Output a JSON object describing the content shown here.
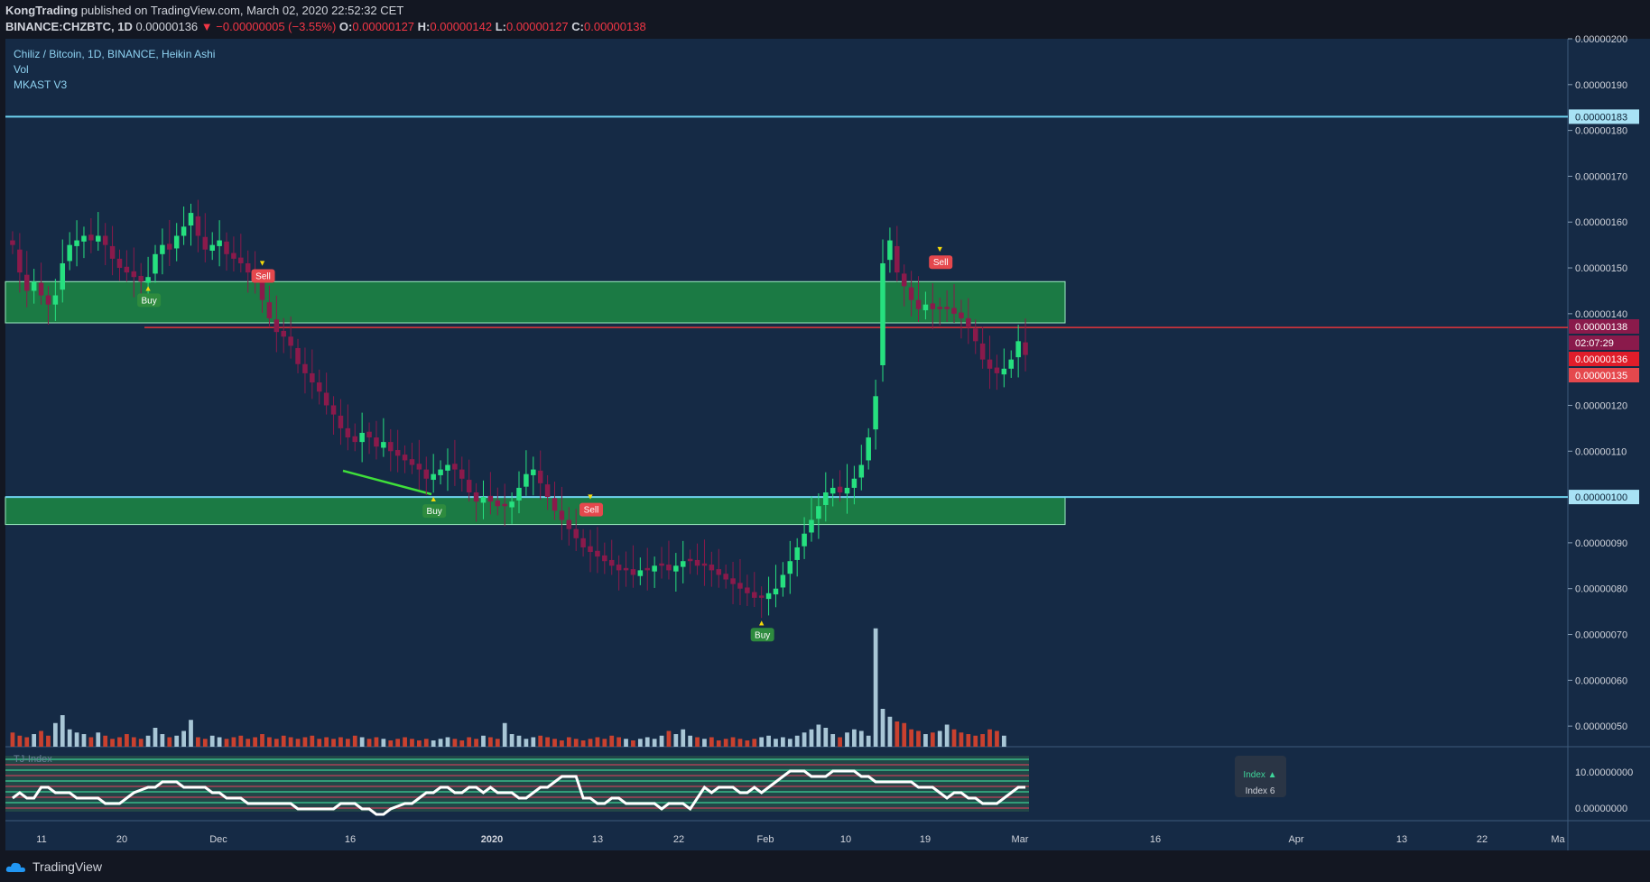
{
  "header": {
    "author": "KongTrading",
    "published": "published on TradingView.com, March 02, 2020 22:52:32 CET",
    "symbol": "BINANCE:CHZBTC, 1D",
    "last": "0.00000136",
    "change": "−0.00000005 (−3.55%)",
    "o_label": "O:",
    "o": "0.00000127",
    "h_label": "H:",
    "h": "0.00000142",
    "l_label": "L:",
    "l": "0.00000127",
    "c_label": "C:",
    "c": "0.00000138"
  },
  "legend": {
    "title": "Chiliz / Bitcoin, 1D, BINANCE, Heikin Ashi",
    "vol": "Vol",
    "indicator": "MKAST V3",
    "sub_indicator": "TJ-Index"
  },
  "footer": {
    "brand": "TradingView"
  },
  "colors": {
    "background": "#152a45",
    "bull": "#26e07f",
    "bear": "#8a1a4b",
    "zone": "#1b7a44",
    "hline": "#6fd3f0",
    "redline": "#e5353a",
    "index_line": "#ffffff"
  },
  "chart_data": [
    {
      "type": "candlestick",
      "title": "Chiliz / Bitcoin, 1D, BINANCE, Heikin Ashi",
      "x_ticks": [
        "11",
        "20",
        "Dec",
        "16",
        "2020",
        "13",
        "22",
        "Feb",
        "10",
        "19",
        "Mar",
        "16",
        "Apr",
        "13",
        "22",
        "Ma"
      ],
      "y_ticks": [
        "0.00000200",
        "0.00000190",
        "0.00000180",
        "0.00000170",
        "0.00000160",
        "0.00000150",
        "0.00000140",
        "0.00000120",
        "0.00000110",
        "0.00000090",
        "0.00000080",
        "0.00000070",
        "0.00000060",
        "0.00000050"
      ],
      "ylim": [
        4.55e-07,
        2e-06
      ],
      "price_labels": {
        "resistance": "0.00000183",
        "current_high": "0.00000138",
        "countdown": "02:07:29",
        "last": "0.00000136",
        "low": "0.00000135",
        "support": "0.00000100"
      },
      "levels": {
        "resistance": 1.83e-06,
        "current": 1.37e-06,
        "support": 1e-06
      },
      "zones": [
        {
          "from": 1.38e-06,
          "to": 1.47e-06
        },
        {
          "from": 9.4e-07,
          "to": 1e-06
        }
      ],
      "signals": [
        {
          "label": "Buy",
          "index": 19,
          "price": 1.46e-06
        },
        {
          "label": "Sell",
          "index": 35,
          "price": 1.45e-06
        },
        {
          "label": "Buy",
          "index": 59,
          "price": 1e-06
        },
        {
          "label": "Sell",
          "index": 81,
          "price": 9.4e-07
        },
        {
          "label": "Buy",
          "index": 105,
          "price": 7.3e-07
        },
        {
          "label": "Sell",
          "index": 130,
          "price": 1.48e-06
        }
      ],
      "candles_close": [
        1.55,
        1.49,
        1.45,
        1.47,
        1.44,
        1.42,
        1.44,
        1.51,
        1.55,
        1.56,
        1.57,
        1.56,
        1.57,
        1.55,
        1.52,
        1.5,
        1.49,
        1.48,
        1.47,
        1.48,
        1.53,
        1.55,
        1.54,
        1.57,
        1.59,
        1.62,
        1.57,
        1.54,
        1.55,
        1.56,
        1.53,
        1.52,
        1.51,
        1.49,
        1.48,
        1.43,
        1.39,
        1.36,
        1.35,
        1.33,
        1.29,
        1.27,
        1.25,
        1.23,
        1.2,
        1.18,
        1.15,
        1.13,
        1.12,
        1.14,
        1.13,
        1.11,
        1.12,
        1.1,
        1.09,
        1.08,
        1.07,
        1.06,
        1.04,
        1.05,
        1.06,
        1.07,
        1.06,
        1.04,
        1.01,
        0.99,
        1.0,
        0.99,
        0.98,
        0.98,
        0.99,
        1.02,
        1.05,
        1.06,
        1.03,
        1.0,
        0.97,
        0.95,
        0.93,
        0.91,
        0.89,
        0.88,
        0.87,
        0.86,
        0.85,
        0.84,
        0.84,
        0.83,
        0.84,
        0.84,
        0.85,
        0.85,
        0.84,
        0.85,
        0.86,
        0.86,
        0.85,
        0.85,
        0.84,
        0.83,
        0.82,
        0.81,
        0.8,
        0.79,
        0.78,
        0.78,
        0.79,
        0.8,
        0.83,
        0.86,
        0.89,
        0.92,
        0.95,
        0.98,
        1.01,
        1.02,
        1.01,
        1.02,
        1.04,
        1.07,
        1.13,
        1.22,
        1.51,
        1.56,
        1.49,
        1.46,
        1.43,
        1.41,
        1.42,
        1.41,
        1.41,
        1.41,
        1.4,
        1.39,
        1.37,
        1.34,
        1.3,
        1.28,
        1.27,
        1.28,
        1.3,
        1.34,
        1.31
      ],
      "volume": [
        18,
        14,
        12,
        16,
        20,
        14,
        30,
        40,
        22,
        18,
        16,
        12,
        18,
        14,
        10,
        12,
        16,
        12,
        10,
        14,
        24,
        16,
        12,
        14,
        20,
        34,
        12,
        10,
        14,
        12,
        10,
        12,
        14,
        10,
        12,
        16,
        12,
        10,
        14,
        12,
        10,
        12,
        14,
        10,
        12,
        10,
        12,
        10,
        14,
        12,
        10,
        12,
        10,
        8,
        10,
        12,
        10,
        8,
        10,
        8,
        10,
        12,
        10,
        8,
        12,
        10,
        14,
        12,
        10,
        30,
        16,
        14,
        10,
        12,
        14,
        12,
        10,
        8,
        12,
        10,
        8,
        10,
        12,
        10,
        14,
        12,
        10,
        8,
        10,
        12,
        10,
        14,
        20,
        16,
        22,
        14,
        12,
        10,
        12,
        8,
        10,
        12,
        10,
        8,
        10,
        12,
        14,
        10,
        12,
        10,
        14,
        18,
        22,
        28,
        24,
        16,
        12,
        18,
        22,
        20,
        14,
        150,
        48,
        38,
        32,
        30,
        22,
        20,
        16,
        18,
        20,
        28,
        22,
        18,
        16,
        14,
        16,
        22,
        20,
        14
      ],
      "index_line": [
        3,
        4,
        3,
        3,
        5,
        5,
        4,
        4,
        4,
        3,
        3,
        3,
        3,
        2,
        2,
        2,
        3,
        4,
        5,
        5,
        6,
        6,
        6,
        5,
        5,
        5,
        5,
        4,
        4,
        3,
        3,
        3,
        2,
        2,
        2,
        2,
        2,
        2,
        2,
        1,
        1,
        1,
        1,
        1,
        1,
        2,
        2,
        2,
        1,
        1,
        0,
        0,
        1,
        2,
        2,
        3,
        4,
        4,
        5,
        5,
        4,
        4,
        5,
        5,
        4,
        5,
        4,
        4,
        4,
        3,
        3,
        4,
        5,
        5,
        6,
        7,
        7,
        7,
        3,
        3,
        2,
        2,
        3,
        3,
        2,
        2,
        2,
        2,
        1,
        2,
        2,
        2,
        1,
        3,
        5,
        4,
        5,
        5,
        5,
        4,
        4,
        5,
        4,
        5,
        6,
        7,
        8,
        8,
        8,
        7,
        7,
        7,
        8,
        8,
        8,
        8,
        7,
        7,
        6,
        6,
        6,
        6,
        6,
        5,
        5,
        5,
        4,
        3,
        4,
        4,
        3,
        3,
        2,
        2,
        2,
        3,
        4,
        5,
        5
      ]
    }
  ]
}
